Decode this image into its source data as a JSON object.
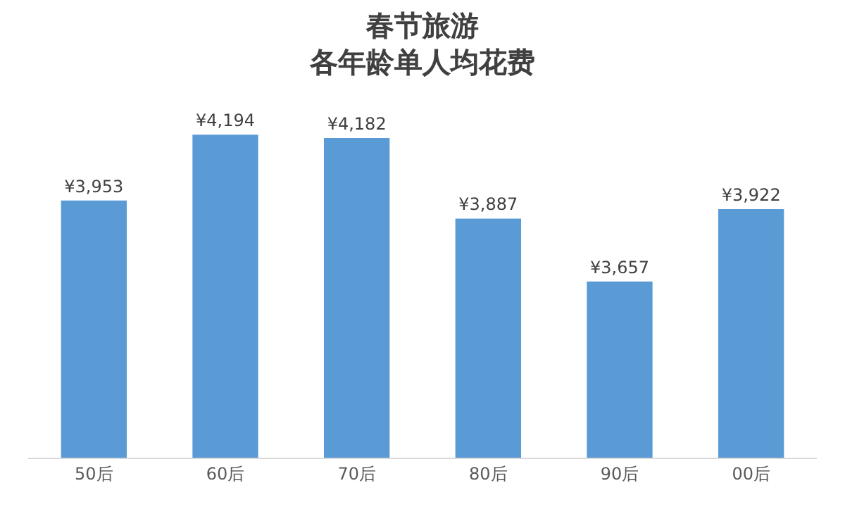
{
  "chart_data": {
    "type": "bar",
    "title": "春节旅游",
    "subtitle": "各年龄单人均花费",
    "categories": [
      "50后",
      "60后",
      "70后",
      "80后",
      "90后",
      "00后"
    ],
    "values": [
      3953,
      4194,
      4182,
      3887,
      3657,
      3922
    ],
    "value_labels": [
      "¥3,953",
      "¥4,194",
      "¥4,182",
      "¥3,887",
      "¥3,657",
      "¥3,922"
    ],
    "color": "#5b9bd5",
    "tick_labels": "x"
  }
}
